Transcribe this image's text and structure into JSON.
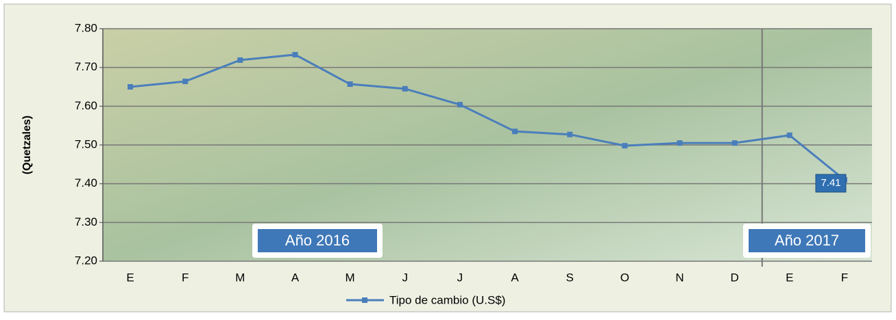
{
  "chart_data": {
    "type": "line",
    "y_label": "(Quetzales)",
    "categories": [
      "E",
      "F",
      "M",
      "A",
      "M",
      "J",
      "J",
      "A",
      "S",
      "O",
      "N",
      "D",
      "E",
      "F"
    ],
    "series": [
      {
        "name": "Tipo de cambio (U.S$)",
        "color": "#4a7ebb",
        "values": [
          7.65,
          7.664,
          7.719,
          7.733,
          7.657,
          7.645,
          7.604,
          7.535,
          7.527,
          7.498,
          7.505,
          7.505,
          7.525,
          7.41
        ]
      }
    ],
    "ylim": [
      7.2,
      7.8
    ],
    "yticks": [
      {
        "value": 7.2,
        "label": "7.20"
      },
      {
        "value": 7.3,
        "label": "7.30"
      },
      {
        "value": 7.4,
        "label": "7.40"
      },
      {
        "value": 7.5,
        "label": "7.50"
      },
      {
        "value": 7.6,
        "label": "7.60"
      },
      {
        "value": 7.7,
        "label": "7.70"
      },
      {
        "value": 7.8,
        "label": "7.80"
      }
    ],
    "grid": true,
    "annotations": [
      "Año 2016",
      "Año 2017"
    ],
    "legend": "bottom"
  }
}
